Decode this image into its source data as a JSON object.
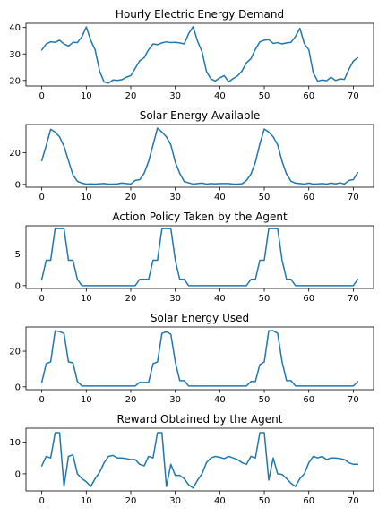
{
  "line_color": "#1f77b4",
  "chart_data": [
    {
      "type": "line",
      "title": "Hourly Electric Energy Demand",
      "xlabel": "",
      "ylabel": "",
      "xlim": [
        -3.55,
        74.55
      ],
      "ylim": [
        17.9,
        41.6
      ],
      "xticks": [
        0,
        10,
        20,
        30,
        40,
        50,
        60,
        70
      ],
      "yticks": [
        20,
        30,
        40
      ],
      "grid": false,
      "x": [
        0,
        1,
        2,
        3,
        4,
        5,
        6,
        7,
        8,
        9,
        10,
        11,
        12,
        13,
        14,
        15,
        16,
        17,
        18,
        19,
        20,
        21,
        22,
        23,
        24,
        25,
        26,
        27,
        28,
        29,
        30,
        31,
        32,
        33,
        34,
        35,
        36,
        37,
        38,
        39,
        40,
        41,
        42,
        43,
        44,
        45,
        46,
        47,
        48,
        49,
        50,
        51,
        52,
        53,
        54,
        55,
        56,
        57,
        58,
        59,
        60,
        61,
        62,
        63,
        64,
        65,
        66,
        67,
        68,
        69,
        70,
        71
      ],
      "y": [
        31.5,
        33.8,
        34.6,
        34.4,
        35.2,
        33.8,
        33.0,
        34.4,
        34.3,
        36.5,
        40.2,
        35.2,
        31.5,
        23.5,
        19.4,
        19.0,
        20.2,
        20.0,
        20.3,
        21.2,
        21.8,
        24.6,
        27.4,
        28.6,
        31.6,
        33.8,
        33.5,
        34.2,
        34.6,
        34.3,
        34.4,
        34.2,
        33.8,
        37.7,
        40.3,
        34.8,
        30.9,
        23.4,
        20.6,
        19.8,
        21.0,
        21.8,
        19.5,
        20.7,
        21.7,
        23.6,
        26.7,
        28.2,
        31.8,
        34.6,
        35.2,
        35.4,
        34.0,
        34.3,
        33.8,
        34.2,
        34.4,
        36.6,
        39.7,
        33.9,
        31.6,
        22.9,
        19.7,
        20.2,
        19.9,
        21.2,
        20.0,
        20.6,
        20.4,
        24.2,
        27.3,
        28.6
      ]
    },
    {
      "type": "line",
      "title": "Solar Energy Available",
      "xlabel": "",
      "ylabel": "",
      "xlim": [
        -3.55,
        74.55
      ],
      "ylim": [
        -1.8,
        37.8
      ],
      "xticks": [
        0,
        10,
        20,
        30,
        40,
        50,
        60,
        70
      ],
      "yticks": [
        0,
        20
      ],
      "grid": false,
      "x": [
        0,
        1,
        2,
        3,
        4,
        5,
        6,
        7,
        8,
        9,
        10,
        11,
        12,
        13,
        14,
        15,
        16,
        17,
        18,
        19,
        20,
        21,
        22,
        23,
        24,
        25,
        26,
        27,
        28,
        29,
        30,
        31,
        32,
        33,
        34,
        35,
        36,
        37,
        38,
        39,
        40,
        41,
        42,
        43,
        44,
        45,
        46,
        47,
        48,
        49,
        50,
        51,
        52,
        53,
        54,
        55,
        56,
        57,
        58,
        59,
        60,
        61,
        62,
        63,
        64,
        65,
        66,
        67,
        68,
        69,
        70,
        71
      ],
      "y": [
        15.0,
        24.5,
        34.8,
        33.0,
        30.0,
        24.0,
        15.0,
        6.0,
        2.0,
        0.8,
        0.2,
        0.3,
        0.2,
        0.4,
        0.5,
        0.2,
        0.2,
        0.3,
        0.8,
        0.5,
        0.2,
        2.5,
        3.0,
        7.0,
        14.5,
        25.0,
        35.5,
        33.0,
        30.0,
        25.0,
        14.0,
        7.0,
        1.8,
        1.0,
        0.2,
        0.5,
        0.8,
        0.2,
        0.5,
        0.3,
        0.5,
        0.5,
        0.5,
        0.2,
        0.2,
        0.4,
        2.5,
        6.5,
        14.0,
        25.5,
        35.0,
        33.0,
        30.0,
        25.0,
        14.5,
        6.5,
        2.0,
        0.8,
        0.5,
        0.2,
        0.8,
        0.2,
        0.3,
        0.5,
        0.2,
        0.8,
        0.3,
        1.0,
        0.2,
        2.5,
        3.0,
        7.5
      ]
    },
    {
      "type": "line",
      "title": "Action Policy Taken by the Agent",
      "xlabel": "",
      "ylabel": "",
      "xlim": [
        -3.55,
        74.55
      ],
      "ylim": [
        -0.45,
        9.45
      ],
      "xticks": [
        0,
        10,
        20,
        30,
        40,
        50,
        60,
        70
      ],
      "yticks": [
        0,
        5
      ],
      "grid": false,
      "x": [
        0,
        1,
        2,
        3,
        4,
        5,
        6,
        7,
        8,
        9,
        10,
        11,
        12,
        13,
        14,
        15,
        16,
        17,
        18,
        19,
        20,
        21,
        22,
        23,
        24,
        25,
        26,
        27,
        28,
        29,
        30,
        31,
        32,
        33,
        34,
        35,
        36,
        37,
        38,
        39,
        40,
        41,
        42,
        43,
        44,
        45,
        46,
        47,
        48,
        49,
        50,
        51,
        52,
        53,
        54,
        55,
        56,
        57,
        58,
        59,
        60,
        61,
        62,
        63,
        64,
        65,
        66,
        67,
        68,
        69,
        70,
        71
      ],
      "y": [
        1,
        4,
        4,
        9,
        9,
        9,
        4,
        4,
        1,
        0,
        0,
        0,
        0,
        0,
        0,
        0,
        0,
        0,
        0,
        0,
        0,
        0,
        1,
        1,
        1,
        4,
        4,
        9,
        9,
        9,
        4,
        1,
        1,
        0,
        0,
        0,
        0,
        0,
        0,
        0,
        0,
        0,
        0,
        0,
        0,
        0,
        0,
        1,
        1,
        4,
        4,
        9,
        9,
        9,
        4,
        1,
        1,
        0,
        0,
        0,
        0,
        0,
        0,
        0,
        0,
        0,
        0,
        0,
        0,
        0,
        0,
        1
      ]
    },
    {
      "type": "line",
      "title": "Solar Energy Used",
      "xlabel": "",
      "ylabel": "",
      "xlim": [
        -3.55,
        74.55
      ],
      "ylim": [
        -1.6,
        33.6
      ],
      "xticks": [
        0,
        10,
        20,
        30,
        40,
        50,
        60,
        70
      ],
      "yticks": [
        0,
        20
      ],
      "grid": false,
      "x": [
        0,
        1,
        2,
        3,
        4,
        5,
        6,
        7,
        8,
        9,
        10,
        11,
        12,
        13,
        14,
        15,
        16,
        17,
        18,
        19,
        20,
        21,
        22,
        23,
        24,
        25,
        26,
        27,
        28,
        29,
        30,
        31,
        32,
        33,
        34,
        35,
        36,
        37,
        38,
        39,
        40,
        41,
        42,
        43,
        44,
        45,
        46,
        47,
        48,
        49,
        50,
        51,
        52,
        53,
        54,
        55,
        56,
        57,
        58,
        59,
        60,
        61,
        62,
        63,
        64,
        65,
        66,
        67,
        68,
        69,
        70,
        71
      ],
      "y": [
        2.5,
        13.0,
        14.0,
        31.5,
        31.0,
        30.0,
        14.0,
        13.5,
        3.0,
        0.5,
        0.5,
        0.5,
        0.5,
        0.5,
        0.5,
        0.5,
        0.5,
        0.5,
        0.5,
        0.5,
        0.5,
        0.5,
        2.5,
        2.5,
        2.5,
        13.0,
        14.0,
        30.0,
        31.0,
        29.5,
        14.0,
        3.5,
        3.5,
        0.5,
        0.5,
        0.5,
        0.5,
        0.5,
        0.5,
        0.5,
        0.5,
        0.5,
        0.5,
        0.5,
        0.5,
        0.5,
        0.5,
        3.0,
        3.0,
        12.5,
        14.0,
        31.5,
        31.5,
        30.0,
        14.0,
        3.5,
        3.5,
        0.5,
        0.5,
        0.5,
        0.5,
        0.5,
        0.5,
        0.5,
        0.5,
        0.5,
        0.5,
        0.5,
        0.5,
        0.5,
        0.5,
        3.0
      ]
    },
    {
      "type": "line",
      "title": "Reward Obtained by the Agent",
      "xlabel": "",
      "ylabel": "",
      "xlim": [
        -3.55,
        74.55
      ],
      "ylim": [
        -5.4,
        14.4
      ],
      "xticks": [
        0,
        10,
        20,
        30,
        40,
        50,
        60,
        70
      ],
      "yticks": [
        0,
        10
      ],
      "grid": false,
      "x": [
        0,
        1,
        2,
        3,
        4,
        5,
        6,
        7,
        8,
        9,
        10,
        11,
        12,
        13,
        14,
        15,
        16,
        17,
        18,
        19,
        20,
        21,
        22,
        23,
        24,
        25,
        26,
        27,
        28,
        29,
        30,
        31,
        32,
        33,
        34,
        35,
        36,
        37,
        38,
        39,
        40,
        41,
        42,
        43,
        44,
        45,
        46,
        47,
        48,
        49,
        50,
        51,
        52,
        53,
        54,
        55,
        56,
        57,
        58,
        59,
        60,
        61,
        62,
        63,
        64,
        65,
        66,
        67,
        68,
        69,
        70,
        71
      ],
      "y": [
        2.5,
        5.5,
        5.0,
        13.0,
        13.0,
        -4.0,
        5.5,
        6.0,
        0.0,
        -1.5,
        -2.5,
        -4.0,
        -1.5,
        0.5,
        3.5,
        5.5,
        5.8,
        5.0,
        5.0,
        4.8,
        4.5,
        4.5,
        3.0,
        2.5,
        5.5,
        5.0,
        13.0,
        13.0,
        -4.0,
        3.0,
        -0.5,
        -0.5,
        -1.5,
        -3.5,
        -4.5,
        -2.0,
        0.0,
        3.5,
        5.0,
        5.5,
        5.2,
        4.8,
        5.5,
        5.0,
        4.5,
        3.5,
        3.0,
        5.5,
        5.0,
        13.0,
        13.0,
        -2.0,
        5.0,
        0.0,
        -0.2,
        -1.5,
        -3.0,
        -4.0,
        -1.5,
        0.0,
        3.5,
        5.5,
        5.0,
        5.5,
        4.5,
        5.0,
        5.0,
        4.8,
        4.5,
        3.5,
        3.0,
        3.0
      ]
    }
  ]
}
